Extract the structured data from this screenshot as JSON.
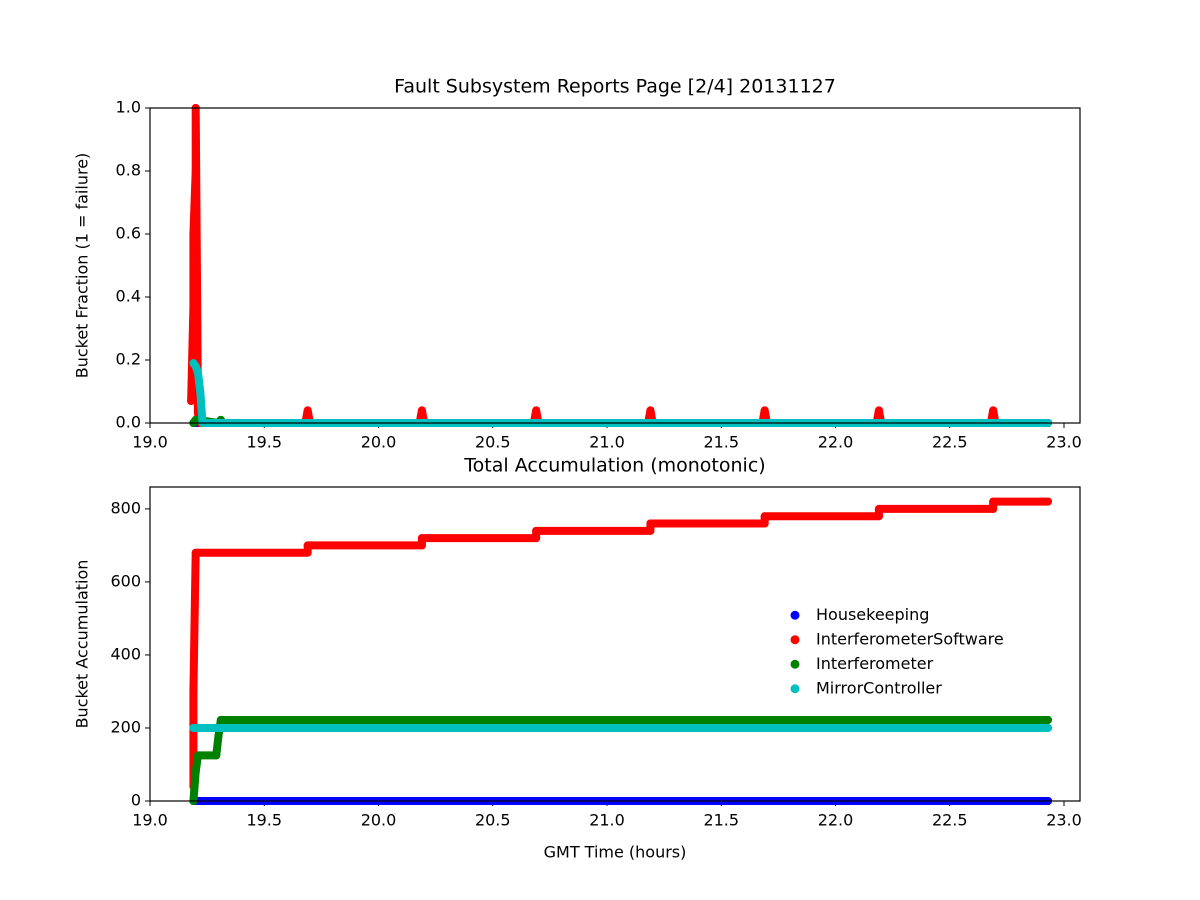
{
  "chart_data": [
    {
      "type": "scatter",
      "title": "Fault Subsystem Reports Page [2/4] 20131127",
      "ylabel": "Bucket Fraction (1 = failure)",
      "xlim": [
        19.0,
        23.07
      ],
      "ylim": [
        0,
        1.0
      ],
      "xticks": [
        {
          "value": 19,
          "label": "19.0"
        },
        19.5,
        {
          "value": 20,
          "label": "20.0"
        },
        20.5,
        {
          "value": 21,
          "label": "21.0"
        },
        21.5,
        {
          "value": 22,
          "label": "22.0"
        },
        22.5,
        {
          "value": 23,
          "label": "23.0"
        }
      ],
      "yticks": [
        {
          "value": 0,
          "label": "0.0"
        },
        0.2,
        0.4,
        0.6,
        0.8,
        {
          "value": 1,
          "label": "1.0"
        }
      ],
      "series": [
        {
          "color": "#0000ff",
          "x": [
            19.19,
            22.93
          ],
          "values": [
            0,
            0
          ]
        },
        {
          "color": "#ff0000",
          "x": [
            19.18,
            19.19,
            19.19,
            19.2,
            19.2,
            19.21,
            19.22,
            19.68,
            19.69,
            19.7,
            20.18,
            20.19,
            20.2,
            20.68,
            20.69,
            20.7,
            21.18,
            21.19,
            21.2,
            21.68,
            21.69,
            21.7,
            22.18,
            22.19,
            22.2,
            22.68,
            22.69,
            22.7,
            22.93
          ],
          "values": [
            0.07,
            0.37,
            0.6,
            0.8,
            1.0,
            0.03,
            0,
            0,
            0.04,
            0,
            0,
            0.04,
            0,
            0,
            0.04,
            0,
            0,
            0.04,
            0,
            0,
            0.04,
            0,
            0,
            0.04,
            0,
            0,
            0.04,
            0,
            0
          ]
        },
        {
          "color": "#008000",
          "x": [
            19.19,
            19.2,
            19.3,
            19.31,
            19.32,
            22.93
          ],
          "values": [
            0,
            0.01,
            0,
            0.01,
            0,
            0
          ]
        },
        {
          "color": "#00bfbf",
          "x": [
            19.19,
            19.2,
            19.21,
            19.22,
            19.23,
            22.93
          ],
          "values": [
            0.19,
            0.18,
            0.16,
            0.1,
            0,
            0
          ]
        }
      ]
    },
    {
      "type": "scatter",
      "title": "Total Accumulation (monotonic)",
      "xlabel": "GMT Time (hours)",
      "ylabel": "Bucket Accumulation",
      "xlim": [
        19.0,
        23.07
      ],
      "ylim": [
        0,
        860
      ],
      "xticks": [
        {
          "value": 19,
          "label": "19.0"
        },
        19.5,
        {
          "value": 20,
          "label": "20.0"
        },
        20.5,
        {
          "value": 21,
          "label": "21.0"
        },
        21.5,
        {
          "value": 22,
          "label": "22.0"
        },
        22.5,
        {
          "value": 23,
          "label": "23.0"
        }
      ],
      "yticks": [
        0,
        200,
        400,
        600,
        800
      ],
      "legend": "center right",
      "series": [
        {
          "name": "Housekeeping",
          "color": "#0000ff",
          "x": [
            19.19,
            22.93
          ],
          "values": [
            0,
            0
          ]
        },
        {
          "name": "InterferometerSoftware",
          "color": "#ff0000",
          "x": [
            19.19,
            19.19,
            19.2,
            19.21,
            19.69,
            19.69,
            20.19,
            20.19,
            20.69,
            20.69,
            21.19,
            21.19,
            21.69,
            21.69,
            22.19,
            22.19,
            22.69,
            22.69,
            22.93
          ],
          "values": [
            40,
            300,
            680,
            680,
            680,
            700,
            700,
            720,
            720,
            740,
            740,
            760,
            760,
            780,
            780,
            800,
            800,
            820,
            820
          ]
        },
        {
          "name": "Interferometer",
          "color": "#008000",
          "x": [
            19.19,
            19.2,
            19.21,
            19.29,
            19.3,
            19.31,
            22.93
          ],
          "values": [
            0,
            80,
            125,
            125,
            180,
            222,
            222
          ]
        },
        {
          "name": "MirrorController",
          "color": "#00bfbf",
          "x": [
            19.19,
            22.93
          ],
          "values": [
            200,
            200
          ]
        }
      ]
    }
  ]
}
